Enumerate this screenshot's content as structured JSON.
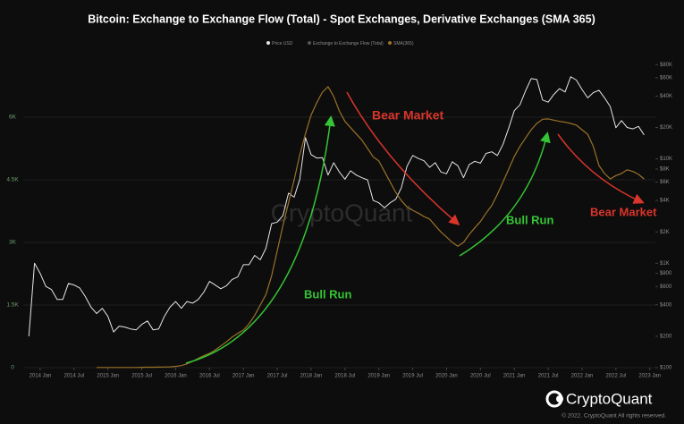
{
  "chart_data": {
    "type": "line",
    "title": "Bitcoin: Exchange to Exchange Flow (Total) - Spot Exchanges, Derivative Exchanges (SMA 365)",
    "x": [
      "2013-11",
      "2013-12",
      "2014-01",
      "2014-02",
      "2014-03",
      "2014-04",
      "2014-05",
      "2014-06",
      "2014-07",
      "2014-08",
      "2014-09",
      "2014-10",
      "2014-11",
      "2014-12",
      "2015-01",
      "2015-02",
      "2015-03",
      "2015-04",
      "2015-05",
      "2015-06",
      "2015-07",
      "2015-08",
      "2015-09",
      "2015-10",
      "2015-11",
      "2015-12",
      "2016-01",
      "2016-02",
      "2016-03",
      "2016-04",
      "2016-05",
      "2016-06",
      "2016-07",
      "2016-08",
      "2016-09",
      "2016-10",
      "2016-11",
      "2016-12",
      "2017-01",
      "2017-02",
      "2017-03",
      "2017-04",
      "2017-05",
      "2017-06",
      "2017-07",
      "2017-08",
      "2017-09",
      "2017-10",
      "2017-11",
      "2017-12",
      "2018-01",
      "2018-02",
      "2018-03",
      "2018-04",
      "2018-05",
      "2018-06",
      "2018-07",
      "2018-08",
      "2018-09",
      "2018-10",
      "2018-11",
      "2018-12",
      "2019-01",
      "2019-02",
      "2019-03",
      "2019-04",
      "2019-05",
      "2019-06",
      "2019-07",
      "2019-08",
      "2019-09",
      "2019-10",
      "2019-11",
      "2019-12",
      "2020-01",
      "2020-02",
      "2020-03",
      "2020-04",
      "2020-05",
      "2020-06",
      "2020-07",
      "2020-08",
      "2020-09",
      "2020-10",
      "2020-11",
      "2020-12",
      "2021-01",
      "2021-02",
      "2021-03",
      "2021-04",
      "2021-05",
      "2021-06",
      "2021-07",
      "2021-08",
      "2021-09",
      "2021-10",
      "2021-11",
      "2021-12",
      "2022-01",
      "2022-02",
      "2022-03",
      "2022-04",
      "2022-05",
      "2022-06",
      "2022-07",
      "2022-08",
      "2022-09",
      "2022-10",
      "2022-11",
      "2022-12"
    ],
    "series": [
      {
        "name": "Price USD",
        "color": "#e6e6e6",
        "axis": "y2",
        "values": [
          200,
          1000,
          800,
          600,
          560,
          450,
          450,
          640,
          620,
          580,
          480,
          380,
          330,
          370,
          310,
          220,
          250,
          245,
          235,
          230,
          260,
          280,
          230,
          235,
          310,
          380,
          430,
          370,
          430,
          415,
          450,
          530,
          670,
          620,
          570,
          610,
          700,
          740,
          970,
          970,
          1190,
          1080,
          1390,
          2400,
          2480,
          2860,
          4700,
          4300,
          6400,
          16000,
          11000,
          10200,
          10300,
          7000,
          9200,
          7500,
          6400,
          7700,
          7000,
          6600,
          6300,
          4000,
          3800,
          3400,
          3800,
          4100,
          5300,
          8500,
          10800,
          10100,
          9600,
          8300,
          9200,
          7500,
          7200,
          9400,
          8600,
          6600,
          8800,
          9500,
          9100,
          11300,
          11700,
          10800,
          13800,
          19700,
          29000,
          33000,
          45000,
          58800,
          57700,
          36700,
          35000,
          41500,
          47100,
          43800,
          61300,
          57000,
          46300,
          38500,
          43200,
          45500,
          38500,
          31800,
          19900,
          23300,
          20000,
          19400,
          20500,
          17000
        ]
      },
      {
        "name": "Exchange to Exchange Flow (Total)",
        "color": "#555555",
        "values": [
          null,
          null,
          null,
          null,
          null,
          null,
          null,
          null,
          null,
          null,
          null,
          null,
          null,
          null,
          null,
          null,
          null,
          null,
          null,
          null,
          null,
          null,
          null,
          null,
          null,
          null,
          null,
          null,
          null,
          null,
          null,
          null,
          null,
          null,
          null,
          null,
          null,
          null,
          null,
          null,
          null,
          null,
          null,
          null,
          null,
          null,
          null,
          null,
          null,
          null,
          null,
          null,
          null,
          null,
          null,
          null,
          null,
          null,
          null,
          null,
          null,
          null,
          null,
          null,
          null,
          null,
          null,
          null,
          null,
          null,
          null,
          null,
          null,
          null,
          null,
          null,
          null,
          null,
          null,
          null,
          null,
          null,
          null,
          null,
          null,
          null,
          null,
          null,
          null,
          null,
          null,
          null,
          null,
          null,
          null,
          null,
          null,
          null,
          null,
          null,
          null,
          null,
          null,
          null,
          null,
          null,
          null,
          null,
          null,
          null
        ]
      },
      {
        "name": "SMA(365)",
        "color": "#9a7228",
        "values": [
          null,
          null,
          null,
          null,
          null,
          null,
          null,
          null,
          null,
          null,
          null,
          null,
          5,
          5,
          5,
          5,
          5,
          5,
          5,
          5,
          8,
          10,
          10,
          12,
          15,
          20,
          30,
          50,
          90,
          150,
          220,
          290,
          340,
          420,
          520,
          620,
          730,
          820,
          900,
          1050,
          1250,
          1500,
          1750,
          2200,
          2800,
          3400,
          3950,
          4500,
          5100,
          5600,
          6050,
          6350,
          6600,
          6730,
          6500,
          6150,
          5900,
          5750,
          5600,
          5450,
          5250,
          5050,
          4950,
          4700,
          4450,
          4200,
          4000,
          3850,
          3770,
          3700,
          3620,
          3560,
          3400,
          3250,
          3130,
          3000,
          2910,
          3000,
          3190,
          3350,
          3500,
          3700,
          3880,
          4150,
          4450,
          4750,
          5060,
          5300,
          5500,
          5700,
          5850,
          5950,
          5960,
          5930,
          5900,
          5880,
          5850,
          5810,
          5700,
          5590,
          5300,
          4840,
          4650,
          4520,
          4600,
          4650,
          4740,
          4700,
          4630,
          4520
        ]
      }
    ],
    "xlim": [
      "2013-10",
      "2023-02"
    ],
    "xticks": [
      {
        "value": "2014-01",
        "label": "2014 Jan"
      },
      {
        "value": "2014-07",
        "label": "2014 Jul"
      },
      {
        "value": "2015-01",
        "label": "2015 Jan"
      },
      {
        "value": "2015-07",
        "label": "2015 Jul"
      },
      {
        "value": "2016-01",
        "label": "2016 Jan"
      },
      {
        "value": "2016-07",
        "label": "2016 Jul"
      },
      {
        "value": "2017-01",
        "label": "2017 Jan"
      },
      {
        "value": "2017-07",
        "label": "2017 Jul"
      },
      {
        "value": "2018-01",
        "label": "2018 Jan"
      },
      {
        "value": "2018-07",
        "label": "2018 Jul"
      },
      {
        "value": "2019-01",
        "label": "2019 Jan"
      },
      {
        "value": "2019-07",
        "label": "2019 Jul"
      },
      {
        "value": "2020-01",
        "label": "2020 Jan"
      },
      {
        "value": "2020-07",
        "label": "2020 Jul"
      },
      {
        "value": "2021-01",
        "label": "2021 Jan"
      },
      {
        "value": "2021-07",
        "label": "2021 Jul"
      },
      {
        "value": "2022-01",
        "label": "2022 Jan"
      },
      {
        "value": "2022-07",
        "label": "2022 Jul"
      },
      {
        "value": "2023-01",
        "label": "2023 Jan"
      }
    ],
    "ylim": [
      0,
      7500
    ],
    "yticks": [
      0,
      {
        "value": 1500,
        "label": "1.5K"
      },
      {
        "value": 3000,
        "label": "3K"
      },
      {
        "value": 4500,
        "label": "4.5K"
      },
      {
        "value": 6000,
        "label": "6K"
      }
    ],
    "y2lim": [
      100,
      100000
    ],
    "y2_log": true,
    "y2ticks": [
      {
        "value": 100,
        "label": "$100"
      },
      {
        "value": 200,
        "label": "$200"
      },
      {
        "value": 400,
        "label": "$400"
      },
      {
        "value": 600,
        "label": "$600"
      },
      {
        "value": 800,
        "label": "$800"
      },
      {
        "value": 1000,
        "label": "$1K"
      },
      {
        "value": 2000,
        "label": "$2K"
      },
      {
        "value": 4000,
        "label": "$4K"
      },
      {
        "value": 6000,
        "label": "$6K"
      },
      {
        "value": 8000,
        "label": "$8K"
      },
      {
        "value": 10000,
        "label": "$10K"
      },
      {
        "value": 20000,
        "label": "$20K"
      },
      {
        "value": 40000,
        "label": "$40K"
      },
      {
        "value": 60000,
        "label": "$60K"
      },
      {
        "value": 80000,
        "label": "$80K"
      }
    ],
    "grid": true,
    "legend": "top",
    "annotations": [
      {
        "text": "Bear Market",
        "color": "#d9352b"
      },
      {
        "text": "Bull Run",
        "color": "#35c435"
      },
      {
        "text": "Bull Run",
        "color": "#35c435"
      },
      {
        "text": "Bear Market",
        "color": "#d9352b"
      }
    ],
    "watermark": "CryptoQuant",
    "brand": "CryptoQuant",
    "copyright": "© 2022. CryptoQuant All rights reserved."
  }
}
